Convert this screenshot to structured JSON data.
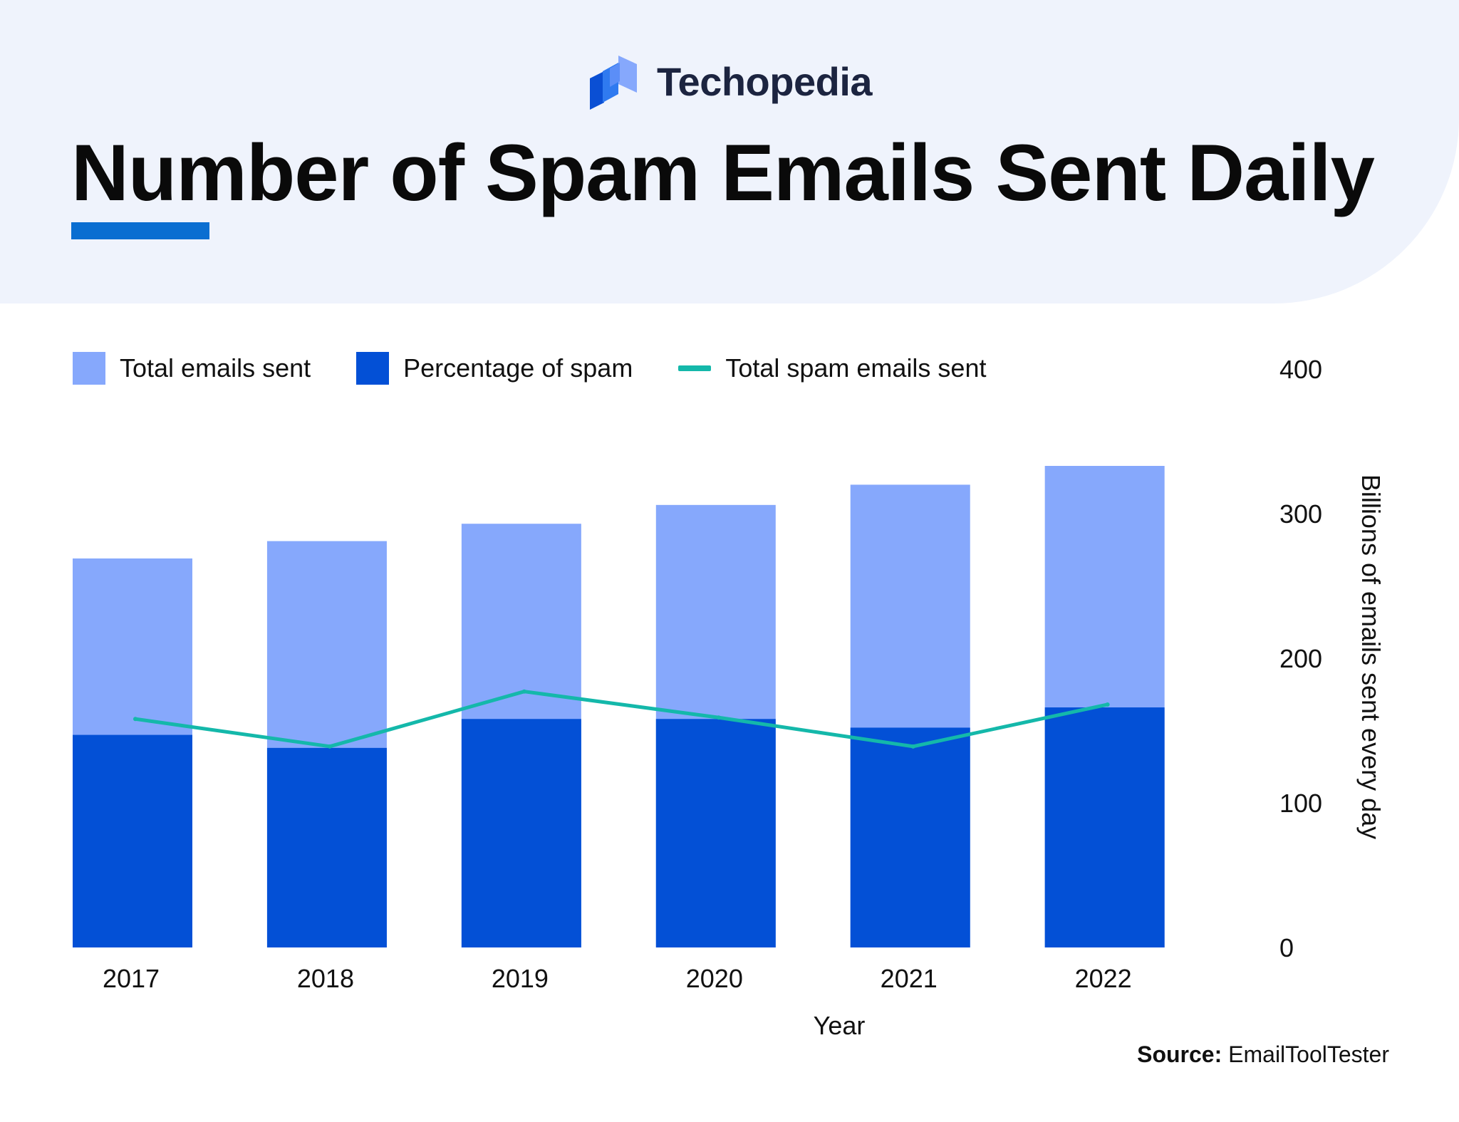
{
  "brand": {
    "name": "Techopedia",
    "logo": "techopedia-logo-icon"
  },
  "title": "Number of Spam Emails Sent Daily",
  "source": {
    "label": "Source:",
    "value": "EmailToolTester"
  },
  "colors": {
    "total": "#86a8fc",
    "spam": "#0350d6",
    "line": "#14b8aa",
    "accent": "#0a6ed1",
    "header_bg": "#eff3fc"
  },
  "legend": [
    {
      "label": "Total emails sent",
      "kind": "box",
      "color": "#86a8fc"
    },
    {
      "label": "Percentage of spam",
      "kind": "box",
      "color": "#0350d6"
    },
    {
      "label": "Total spam emails sent",
      "kind": "line",
      "color": "#14b8aa"
    }
  ],
  "chart_data": {
    "type": "bar",
    "title": "Number of Spam Emails Sent Daily",
    "categories": [
      "2017",
      "2018",
      "2019",
      "2020",
      "2021",
      "2022"
    ],
    "series": [
      {
        "name": "Total emails sent",
        "type": "bar",
        "values": [
          269,
          281,
          293,
          306,
          320,
          333
        ]
      },
      {
        "name": "Percentage of spam",
        "type": "bar",
        "values": [
          147,
          138,
          158,
          158,
          152,
          166
        ]
      },
      {
        "name": "Total spam emails sent",
        "type": "line",
        "values": [
          158,
          139,
          177,
          159,
          139,
          168
        ]
      }
    ],
    "xlabel": "Year",
    "ylabel": "Billions of emails sent every day",
    "ylim": [
      0,
      400
    ],
    "yticks": [
      0,
      100,
      200,
      300,
      400
    ],
    "grid": false,
    "legend_position": "top-left",
    "y_axis_side": "right"
  }
}
